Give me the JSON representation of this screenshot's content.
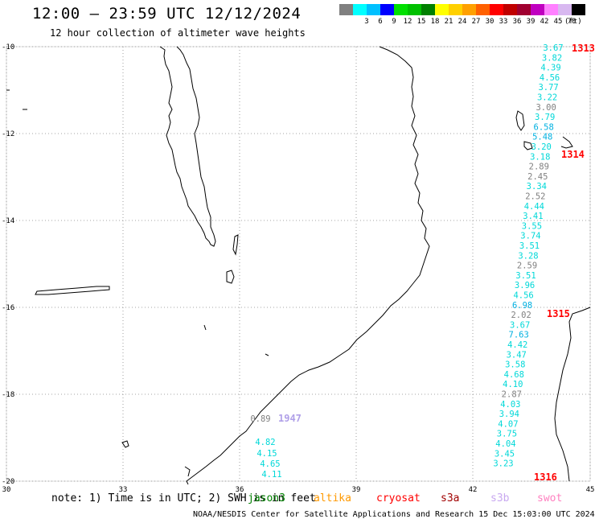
{
  "title": "12:00 – 23:59 UTC 12/12/2024",
  "subtitle": "12 hour collection of altimeter wave heights",
  "scale": {
    "unit": "(ft)",
    "bins": [
      {
        "label": "",
        "color": "#808080"
      },
      {
        "label": "3",
        "color": "#00ffff"
      },
      {
        "label": "6",
        "color": "#00c0ff"
      },
      {
        "label": "9",
        "color": "#0000ff"
      },
      {
        "label": "12",
        "color": "#00e000"
      },
      {
        "label": "15",
        "color": "#00c000"
      },
      {
        "label": "18",
        "color": "#008000"
      },
      {
        "label": "21",
        "color": "#ffff00"
      },
      {
        "label": "24",
        "color": "#ffd000"
      },
      {
        "label": "27",
        "color": "#ffa000"
      },
      {
        "label": "30",
        "color": "#ff6000"
      },
      {
        "label": "33",
        "color": "#ff0000"
      },
      {
        "label": "36",
        "color": "#c00000"
      },
      {
        "label": "39",
        "color": "#a00030"
      },
      {
        "label": "42",
        "color": "#c000c0"
      },
      {
        "label": "45",
        "color": "#ff80ff"
      },
      {
        "label": "70",
        "color": "#d8b8f0"
      },
      {
        "label": "",
        "color": "#000000"
      }
    ]
  },
  "map": {
    "lon_labels": [
      "30",
      "33",
      "36",
      "39",
      "42",
      "45"
    ],
    "lat_labels": [
      "-10",
      "-12",
      "-14",
      "-16",
      "-18",
      "-20"
    ]
  },
  "tracks": {
    "east": [
      {
        "value": "3.67",
        "color": "#00d8d8"
      },
      {
        "value": "3.82",
        "color": "#00d8d8"
      },
      {
        "value": "4.39",
        "color": "#00d8d8"
      },
      {
        "value": "4.56",
        "color": "#00d8d8"
      },
      {
        "value": "3.77",
        "color": "#00d8d8"
      },
      {
        "value": "3.22",
        "color": "#00d8d8"
      },
      {
        "value": "3.00",
        "color": "#808080"
      },
      {
        "value": "3.79",
        "color": "#00d8d8"
      },
      {
        "value": "6.58",
        "color": "#00b0e0"
      },
      {
        "value": "5.48",
        "color": "#00b0e0"
      },
      {
        "value": "3.20",
        "color": "#00d8d8"
      },
      {
        "value": "3.18",
        "color": "#00d8d8"
      },
      {
        "value": "2.89",
        "color": "#808080"
      },
      {
        "value": "2.45",
        "color": "#808080"
      },
      {
        "value": "3.34",
        "color": "#00d8d8"
      },
      {
        "value": "2.52",
        "color": "#808080"
      },
      {
        "value": "4.44",
        "color": "#00d8d8"
      },
      {
        "value": "3.41",
        "color": "#00d8d8"
      },
      {
        "value": "3.55",
        "color": "#00d8d8"
      },
      {
        "value": "3.74",
        "color": "#00d8d8"
      },
      {
        "value": "3.51",
        "color": "#00d8d8"
      },
      {
        "value": "3.28",
        "color": "#00d8d8"
      },
      {
        "value": "2.59",
        "color": "#808080"
      },
      {
        "value": "3.51",
        "color": "#00d8d8"
      },
      {
        "value": "3.96",
        "color": "#00d8d8"
      },
      {
        "value": "4.56",
        "color": "#00d8d8"
      },
      {
        "value": "6.98",
        "color": "#00b0e0"
      },
      {
        "value": "2.02",
        "color": "#808080"
      },
      {
        "value": "3.67",
        "color": "#00d8d8"
      },
      {
        "value": "7.63",
        "color": "#00b0e0"
      },
      {
        "value": "4.42",
        "color": "#00d8d8"
      },
      {
        "value": "3.47",
        "color": "#00d8d8"
      },
      {
        "value": "3.58",
        "color": "#00d8d8"
      },
      {
        "value": "4.68",
        "color": "#00d8d8"
      },
      {
        "value": "4.10",
        "color": "#00d8d8"
      },
      {
        "value": "2.87",
        "color": "#808080"
      },
      {
        "value": "4.03",
        "color": "#00d8d8"
      },
      {
        "value": "3.94",
        "color": "#00d8d8"
      },
      {
        "value": "4.07",
        "color": "#00d8d8"
      },
      {
        "value": "3.75",
        "color": "#00d8d8"
      },
      {
        "value": "4.04",
        "color": "#00d8d8"
      },
      {
        "value": "3.45",
        "color": "#00d8d8"
      },
      {
        "value": "3.23",
        "color": "#00d8d8"
      }
    ],
    "west": [
      {
        "value": "0.89",
        "color": "#808080"
      },
      {
        "value": "4.82",
        "color": "#00d8d8"
      },
      {
        "value": "4.15",
        "color": "#00d8d8"
      },
      {
        "value": "4.65",
        "color": "#00d8d8"
      },
      {
        "value": "4.11",
        "color": "#00d8d8"
      }
    ]
  },
  "passes": [
    {
      "label": "1313",
      "color": "#ff0000"
    },
    {
      "label": "1314",
      "color": "#ff0000"
    },
    {
      "label": "1315",
      "color": "#ff0000"
    },
    {
      "label": "1316",
      "color": "#ff0000"
    },
    {
      "label": "1947",
      "color": "#b0a0e8"
    }
  ],
  "legend": {
    "note": "note: 1) Time is in UTC; 2) SWH is in feet",
    "satellites": [
      {
        "name": "jason3",
        "color": "#008000"
      },
      {
        "name": "altika",
        "color": "#ff9900"
      },
      {
        "name": "cryosat",
        "color": "#ff0000"
      },
      {
        "name": "s3a",
        "color": "#a00000"
      },
      {
        "name": "s3b",
        "color": "#c8a8f0"
      },
      {
        "name": "swot",
        "color": "#ff80c0"
      }
    ]
  },
  "footer": "NOAA/NESDIS Center for Satellite Applications and Research   15 Dec 15:03:00 UTC 2024"
}
